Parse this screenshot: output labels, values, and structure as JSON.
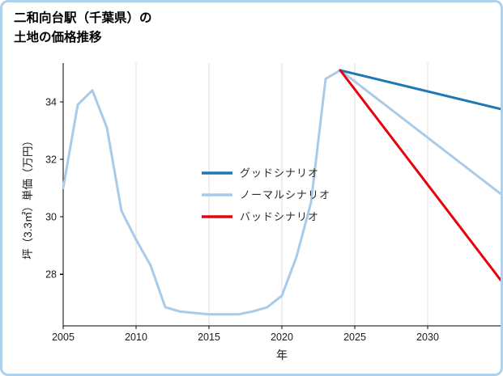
{
  "title": {
    "line1": "二和向台駅（千葉県）の",
    "line2": "土地の価格推移"
  },
  "chart_data": {
    "type": "line",
    "title": "二和向台駅（千葉県）の土地の価格推移",
    "xlabel": "年",
    "ylabel": "坪（3.3㎡）単価（万円）",
    "xlim": [
      2005,
      2035
    ],
    "ylim": [
      26.2,
      35.35
    ],
    "xticks": [
      2005,
      2010,
      2015,
      2020,
      2025,
      2030
    ],
    "yticks": [
      28,
      30,
      32,
      34
    ],
    "grid": "vertical-light",
    "grid_color": "#dcdcdc",
    "legend_position": "center",
    "legend": [
      "グッドシナリオ",
      "ノーマルシナリオ",
      "バッドシナリオ"
    ],
    "series": [
      {
        "id": "normal",
        "name": "ノーマルシナリオ",
        "color": "#a9cbea",
        "x": [
          2005,
          2006,
          2007,
          2008,
          2009,
          2010,
          2011,
          2012,
          2013,
          2014,
          2015,
          2016,
          2017,
          2018,
          2019,
          2020,
          2021,
          2022,
          2023,
          2024,
          2035
        ],
        "values": [
          31.0,
          33.9,
          34.4,
          33.1,
          30.2,
          29.2,
          28.3,
          26.85,
          26.7,
          26.65,
          26.6,
          26.6,
          26.6,
          26.7,
          26.85,
          27.25,
          28.6,
          30.5,
          34.8,
          35.1,
          30.8
        ]
      },
      {
        "id": "good",
        "name": "グッドシナリオ",
        "color": "#1f77b4",
        "x": [
          2024,
          2035
        ],
        "values": [
          35.1,
          33.75
        ]
      },
      {
        "id": "bad",
        "name": "バッドシナリオ",
        "color": "#e8000b",
        "x": [
          2024,
          2035
        ],
        "values": [
          35.1,
          27.8
        ]
      }
    ],
    "axis_color": "#000000",
    "tick_label_color": "#1a1a1a"
  }
}
